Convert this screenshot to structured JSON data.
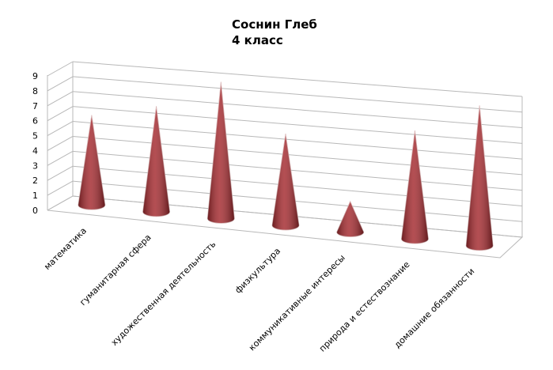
{
  "chart_data": {
    "type": "cone3d",
    "title": "Соснин Глеб",
    "subtitle": "4 класс",
    "categories": [
      "математика",
      "гуманитарная сфера",
      "художественная деятельность",
      "физкультура",
      "коммуникативные интересы",
      "природа и естествознание",
      "домашние обязанности"
    ],
    "values": [
      6,
      7,
      9,
      6,
      2,
      7,
      9
    ],
    "color": "#a3282d",
    "ylim": [
      0,
      9
    ],
    "yticks": [
      0,
      1,
      2,
      3,
      4,
      5,
      6,
      7,
      8,
      9
    ],
    "grid": true
  }
}
